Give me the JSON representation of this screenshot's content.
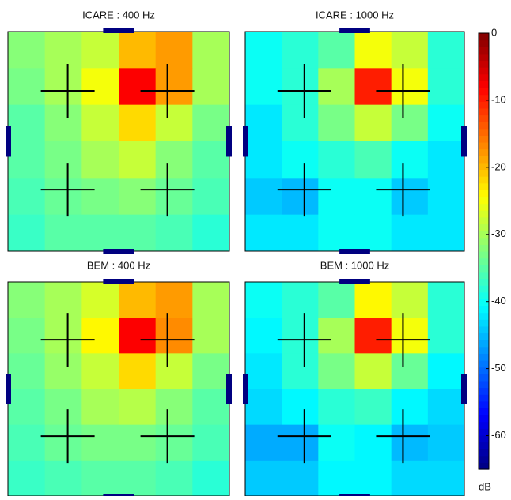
{
  "chart_data": [
    {
      "type": "heatmap",
      "title": "ICARE : 400 Hz",
      "values": [
        [
          -32,
          -30,
          -28,
          -20,
          -18,
          -30
        ],
        [
          -33,
          -30,
          -25,
          -8,
          -18,
          -30
        ],
        [
          -35,
          -32,
          -28,
          -22,
          -28,
          -33
        ],
        [
          -35,
          -33,
          -30,
          -28,
          -32,
          -35
        ],
        [
          -36,
          -34,
          -33,
          -32,
          -34,
          -36
        ],
        [
          -37,
          -35,
          -35,
          -35,
          -36,
          -38
        ]
      ]
    },
    {
      "type": "heatmap",
      "title": "ICARE : 1000 Hz",
      "values": [
        [
          -40,
          -38,
          -35,
          -25,
          -28,
          -38
        ],
        [
          -40,
          -38,
          -30,
          -10,
          -25,
          -38
        ],
        [
          -42,
          -38,
          -33,
          -28,
          -33,
          -40
        ],
        [
          -42,
          -40,
          -38,
          -36,
          -40,
          -42
        ],
        [
          -44,
          -45,
          -40,
          -40,
          -44,
          -42
        ],
        [
          -42,
          -42,
          -40,
          -40,
          -42,
          -42
        ]
      ]
    },
    {
      "type": "heatmap",
      "title": "BEM : 400 Hz",
      "values": [
        [
          -32,
          -30,
          -27,
          -20,
          -18,
          -30
        ],
        [
          -33,
          -30,
          -24,
          -8,
          -17,
          -30
        ],
        [
          -34,
          -31,
          -28,
          -22,
          -28,
          -33
        ],
        [
          -35,
          -33,
          -30,
          -29,
          -32,
          -35
        ],
        [
          -36,
          -34,
          -33,
          -33,
          -34,
          -36
        ],
        [
          -37,
          -36,
          -35,
          -35,
          -36,
          -38
        ]
      ]
    },
    {
      "type": "heatmap",
      "title": "BEM : 1000 Hz",
      "values": [
        [
          -40,
          -38,
          -35,
          -24,
          -28,
          -38
        ],
        [
          -41,
          -38,
          -30,
          -10,
          -25,
          -38
        ],
        [
          -42,
          -38,
          -33,
          -28,
          -34,
          -41
        ],
        [
          -43,
          -41,
          -38,
          -37,
          -41,
          -43
        ],
        [
          -46,
          -46,
          -40,
          -41,
          -45,
          -44
        ],
        [
          -44,
          -44,
          -41,
          -41,
          -43,
          -43
        ]
      ]
    }
  ],
  "colorbar": {
    "label": "dB",
    "lim": [
      -65,
      0
    ],
    "ticks": [
      0,
      -10,
      -20,
      -30,
      -40,
      -50,
      -60
    ]
  }
}
